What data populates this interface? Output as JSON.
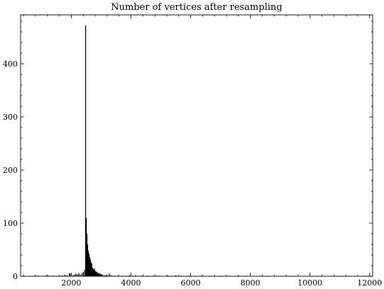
{
  "chart_data": {
    "type": "bar",
    "title": "Number of vertices after resampling",
    "xlabel": "",
    "ylabel": "",
    "xlim": [
      300,
      12100
    ],
    "ylim": [
      0,
      492
    ],
    "x_ticks": [
      2000,
      4000,
      6000,
      8000,
      10000,
      12000
    ],
    "y_ticks": [
      0,
      100,
      200,
      300,
      400
    ],
    "x_minor_step": 400,
    "y_minor_step": 20,
    "bin_width": 23,
    "grid": false,
    "legend": "none",
    "bar_color": "#000000",
    "bars": [
      {
        "x": 760,
        "y": 1
      },
      {
        "x": 900,
        "y": 1
      },
      {
        "x": 1050,
        "y": 1
      },
      {
        "x": 1150,
        "y": 2
      },
      {
        "x": 1250,
        "y": 1
      },
      {
        "x": 1380,
        "y": 1
      },
      {
        "x": 1500,
        "y": 1
      },
      {
        "x": 1600,
        "y": 1
      },
      {
        "x": 1700,
        "y": 2
      },
      {
        "x": 1780,
        "y": 3
      },
      {
        "x": 1850,
        "y": 2
      },
      {
        "x": 1930,
        "y": 6
      },
      {
        "x": 1960,
        "y": 5
      },
      {
        "x": 2050,
        "y": 2
      },
      {
        "x": 2100,
        "y": 3
      },
      {
        "x": 2150,
        "y": 5
      },
      {
        "x": 2200,
        "y": 4
      },
      {
        "x": 2250,
        "y": 6
      },
      {
        "x": 2300,
        "y": 3
      },
      {
        "x": 2350,
        "y": 6
      },
      {
        "x": 2400,
        "y": 8
      },
      {
        "x": 2440,
        "y": 12
      },
      {
        "x": 2477,
        "y": 472
      },
      {
        "x": 2500,
        "y": 110
      },
      {
        "x": 2523,
        "y": 80
      },
      {
        "x": 2546,
        "y": 60
      },
      {
        "x": 2569,
        "y": 48
      },
      {
        "x": 2592,
        "y": 42
      },
      {
        "x": 2615,
        "y": 36
      },
      {
        "x": 2638,
        "y": 32
      },
      {
        "x": 2661,
        "y": 26
      },
      {
        "x": 2684,
        "y": 24
      },
      {
        "x": 2707,
        "y": 16
      },
      {
        "x": 2730,
        "y": 14
      },
      {
        "x": 2753,
        "y": 12
      },
      {
        "x": 2776,
        "y": 15
      },
      {
        "x": 2799,
        "y": 10
      },
      {
        "x": 2822,
        "y": 8
      },
      {
        "x": 2845,
        "y": 9
      },
      {
        "x": 2868,
        "y": 6
      },
      {
        "x": 2891,
        "y": 7
      },
      {
        "x": 2914,
        "y": 5
      },
      {
        "x": 2937,
        "y": 4
      },
      {
        "x": 2960,
        "y": 6
      },
      {
        "x": 2983,
        "y": 3
      },
      {
        "x": 3006,
        "y": 4
      },
      {
        "x": 3040,
        "y": 3
      },
      {
        "x": 3080,
        "y": 2
      },
      {
        "x": 3120,
        "y": 2
      },
      {
        "x": 3170,
        "y": 2
      },
      {
        "x": 3220,
        "y": 1
      },
      {
        "x": 3270,
        "y": 5
      },
      {
        "x": 3320,
        "y": 2
      },
      {
        "x": 3380,
        "y": 1
      },
      {
        "x": 3450,
        "y": 1
      },
      {
        "x": 3550,
        "y": 1
      },
      {
        "x": 3700,
        "y": 1
      },
      {
        "x": 3850,
        "y": 1
      },
      {
        "x": 3950,
        "y": 2
      },
      {
        "x": 4050,
        "y": 1
      },
      {
        "x": 4150,
        "y": 2
      },
      {
        "x": 4250,
        "y": 1
      },
      {
        "x": 4350,
        "y": 1
      },
      {
        "x": 4550,
        "y": 1
      },
      {
        "x": 4750,
        "y": 1
      },
      {
        "x": 4950,
        "y": 1
      },
      {
        "x": 5250,
        "y": 1
      },
      {
        "x": 5500,
        "y": 2
      },
      {
        "x": 5650,
        "y": 1
      },
      {
        "x": 5950,
        "y": 1
      },
      {
        "x": 6150,
        "y": 1
      },
      {
        "x": 6350,
        "y": 1
      },
      {
        "x": 6600,
        "y": 1
      },
      {
        "x": 7000,
        "y": 1
      },
      {
        "x": 7850,
        "y": 1
      },
      {
        "x": 8600,
        "y": 1
      },
      {
        "x": 9050,
        "y": 1
      },
      {
        "x": 9800,
        "y": 1
      },
      {
        "x": 10800,
        "y": 1
      },
      {
        "x": 11500,
        "y": 1
      }
    ]
  }
}
